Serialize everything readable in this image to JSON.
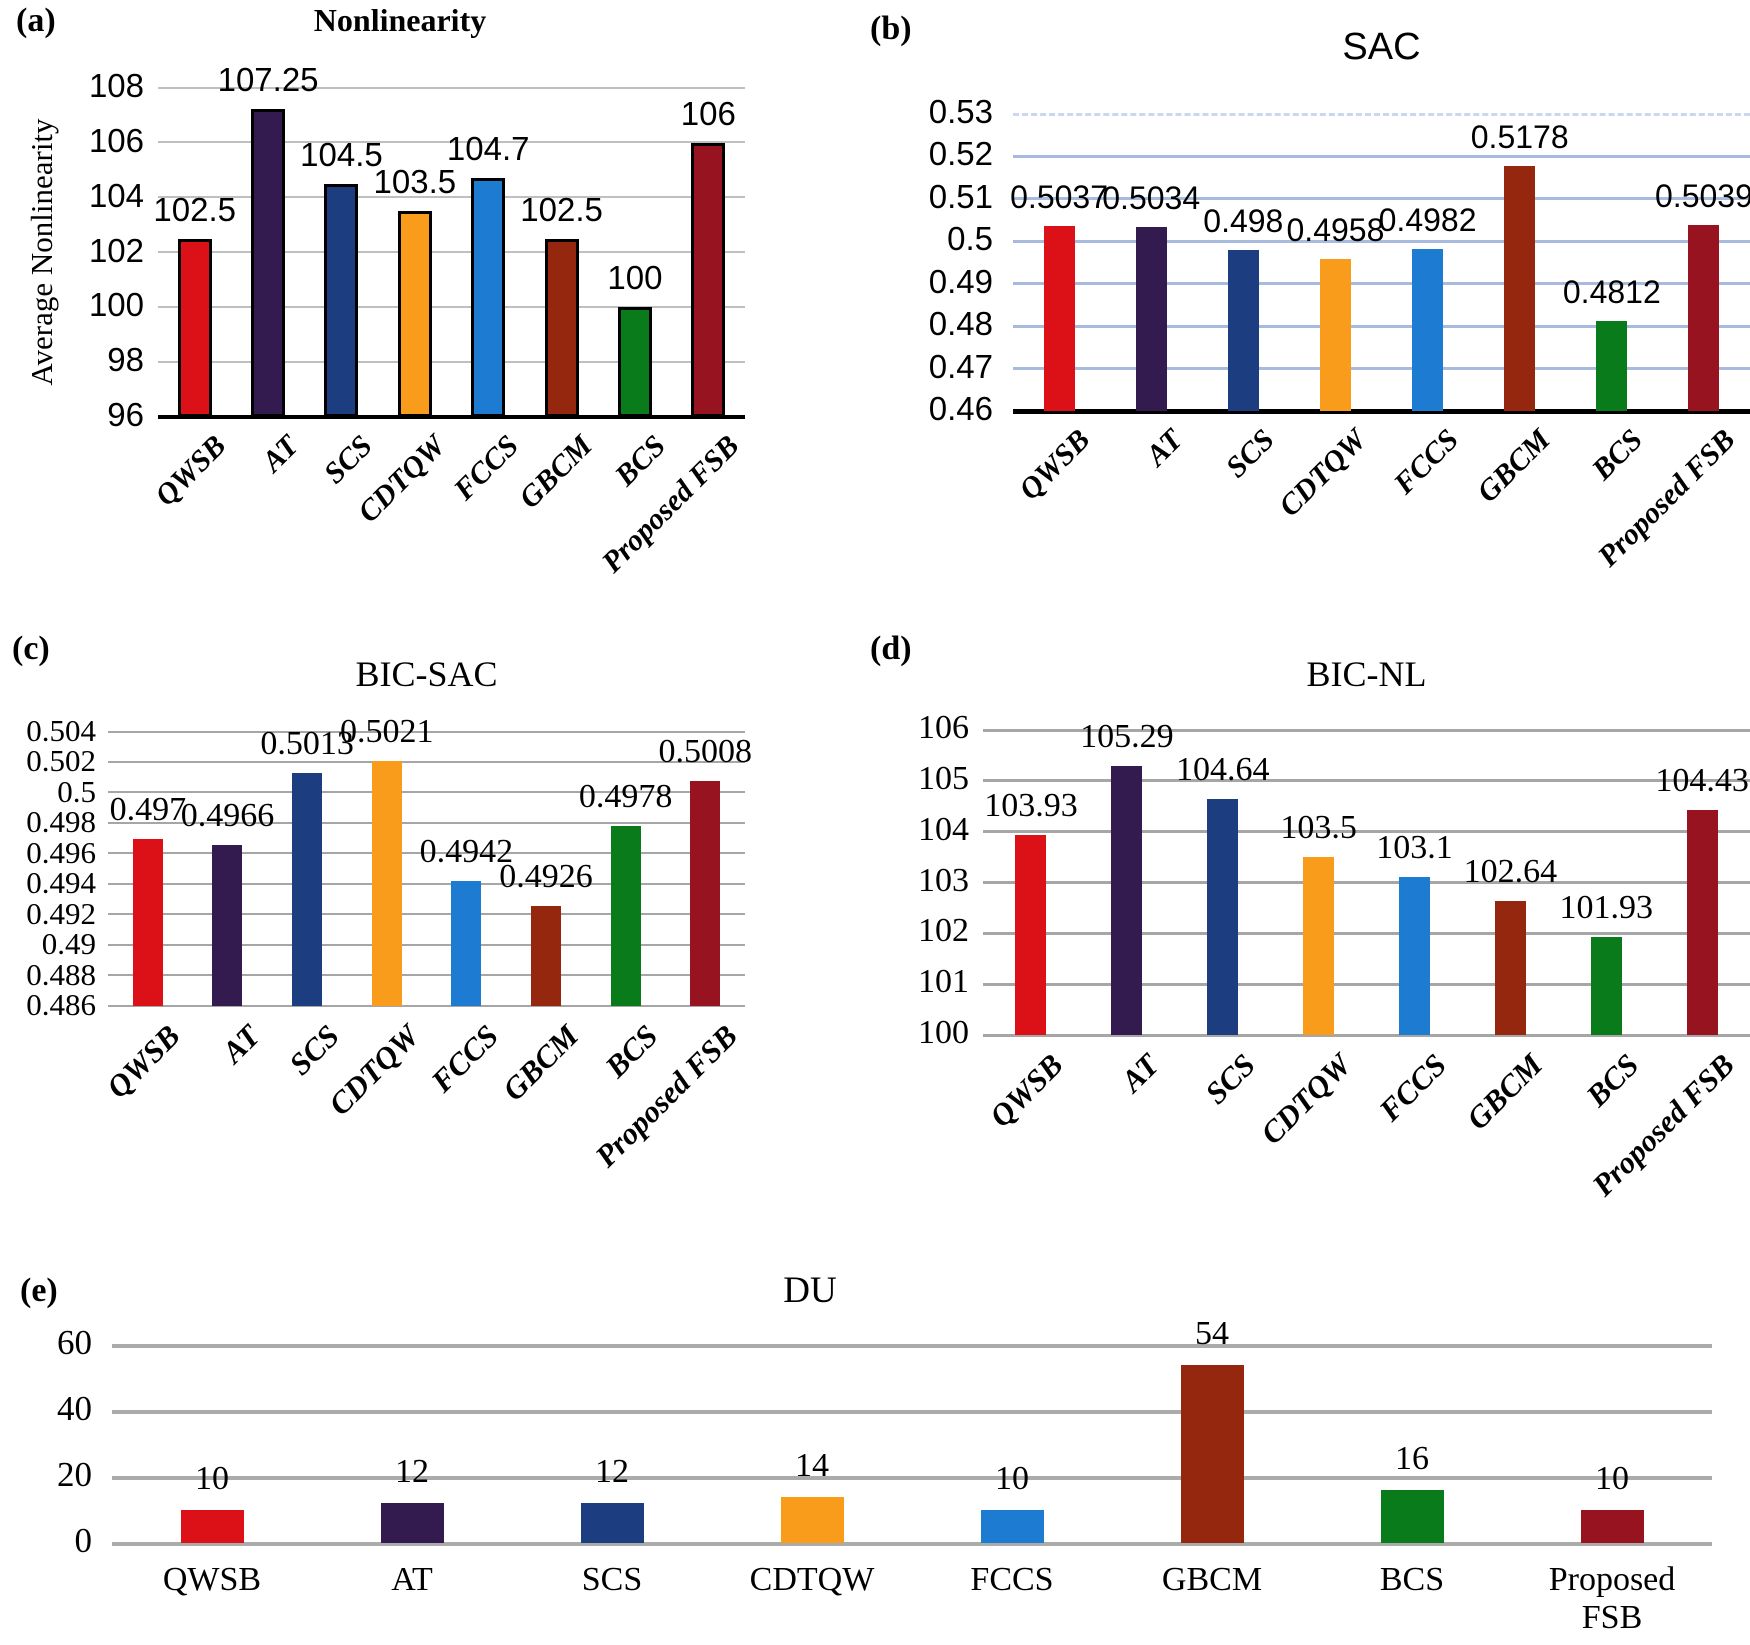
{
  "series_colors": [
    "#DC1117",
    "#331A4F",
    "#1C3E80",
    "#F99C1C",
    "#1D7CD1",
    "#96270F",
    "#0A7B1B",
    "#97131F"
  ],
  "chart_data": [
    {
      "type": "bar",
      "panel": "(a)",
      "title": "Nonlinearity",
      "ylabel": "Average Nonlinearity",
      "categories": [
        "QWSB",
        "AT",
        "SCS",
        "CDTQW",
        "FCCS",
        "GBCM",
        "BCS",
        "Proposed FSB"
      ],
      "values": [
        102.5,
        107.25,
        104.5,
        103.5,
        104.7,
        102.5,
        100,
        106
      ],
      "value_labels": [
        "102.5",
        "107.25",
        "104.5",
        "103.5",
        "104.7",
        "102.5",
        "100",
        "106"
      ],
      "ylim": [
        96,
        108
      ],
      "ytick_values": [
        96,
        98,
        100,
        102,
        104,
        106,
        108
      ],
      "ytick_labels": [
        "96",
        "98",
        "100",
        "102",
        "104",
        "106",
        "108"
      ],
      "grid": true,
      "legend": false
    },
    {
      "type": "bar",
      "panel": "(b)",
      "title": "SAC",
      "ylabel": "",
      "categories": [
        "QWSB",
        "AT",
        "SCS",
        "CDTQW",
        "FCCS",
        "GBCM",
        "BCS",
        "Proposed FSB"
      ],
      "values": [
        0.5037,
        0.5034,
        0.498,
        0.4958,
        0.4982,
        0.5178,
        0.4812,
        0.5039
      ],
      "value_labels": [
        "0.5037",
        "0.5034",
        "0.498",
        "0.4958",
        "0.4982",
        "0.5178",
        "0.4812",
        "0.5039"
      ],
      "ylim": [
        0.46,
        0.53
      ],
      "ytick_values": [
        0.46,
        0.47,
        0.48,
        0.49,
        0.5,
        0.51,
        0.52,
        0.53
      ],
      "ytick_labels": [
        "0.46",
        "0.47",
        "0.48",
        "0.49",
        "0.5",
        "0.51",
        "0.52",
        "0.53"
      ],
      "grid": true,
      "legend": false
    },
    {
      "type": "bar",
      "panel": "(c)",
      "title": "BIC-SAC",
      "ylabel": "",
      "categories": [
        "QWSB",
        "AT",
        "SCS",
        "CDTQW",
        "FCCS",
        "GBCM",
        "BCS",
        "Proposed FSB"
      ],
      "values": [
        0.497,
        0.4966,
        0.5013,
        0.5021,
        0.4942,
        0.4926,
        0.4978,
        0.5008
      ],
      "value_labels": [
        "0.497",
        "0.4966",
        "0.5013",
        "0.5021",
        "0.4942",
        "0.4926",
        "0.4978",
        "0.5008"
      ],
      "ylim": [
        0.486,
        0.504
      ],
      "ytick_values": [
        0.486,
        0.488,
        0.49,
        0.492,
        0.494,
        0.496,
        0.498,
        0.5,
        0.502,
        0.504
      ],
      "ytick_labels": [
        "0.486",
        "0.488",
        "0.49",
        "0.492",
        "0.494",
        "0.496",
        "0.498",
        "0.5",
        "0.502",
        "0.504"
      ],
      "grid": true,
      "legend": false
    },
    {
      "type": "bar",
      "panel": "(d)",
      "title": "BIC-NL",
      "ylabel": "",
      "categories": [
        "QWSB",
        "AT",
        "SCS",
        "CDTQW",
        "FCCS",
        "GBCM",
        "BCS",
        "Proposed FSB"
      ],
      "values": [
        103.93,
        105.29,
        104.64,
        103.5,
        103.1,
        102.64,
        101.93,
        104.43
      ],
      "value_labels": [
        "103.93",
        "105.29",
        "104.64",
        "103.5",
        "103.1",
        "102.64",
        "101.93",
        "104.43"
      ],
      "ylim": [
        100,
        106
      ],
      "ytick_values": [
        100,
        101,
        102,
        103,
        104,
        105,
        106
      ],
      "ytick_labels": [
        "100",
        "101",
        "102",
        "103",
        "104",
        "105",
        "106"
      ],
      "grid": true,
      "legend": false
    },
    {
      "type": "bar",
      "panel": "(e)",
      "title": "DU",
      "ylabel": "",
      "categories": [
        "QWSB",
        "AT",
        "SCS",
        "CDTQW",
        "FCCS",
        "GBCM",
        "BCS",
        "Proposed FSB"
      ],
      "values": [
        10,
        12,
        12,
        14,
        10,
        54,
        16,
        10
      ],
      "value_labels": [
        "10",
        "12",
        "12",
        "14",
        "10",
        "54",
        "16",
        "10"
      ],
      "ylim": [
        0,
        60
      ],
      "ytick_values": [
        0,
        20,
        40,
        60
      ],
      "ytick_labels": [
        "0",
        "20",
        "40",
        "60"
      ],
      "grid": true,
      "legend": false
    }
  ]
}
